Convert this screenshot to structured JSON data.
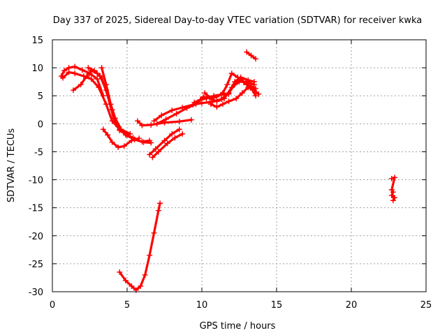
{
  "chart_data": {
    "type": "scatter",
    "title": "Day 337 of 2025, Sidereal Day-to-day VTEC variation (SDTVAR) for receiver kwka",
    "xlabel": "GPS time / hours",
    "ylabel": "SDTVAR / TECUs",
    "xlim": [
      0,
      25
    ],
    "ylim": [
      -30,
      15
    ],
    "xticks": [
      "0",
      "5",
      "10",
      "15",
      "20",
      "25"
    ],
    "yticks": [
      "-30",
      "-25",
      "-20",
      "-15",
      "-10",
      "-5",
      "0",
      "5",
      "10",
      "15"
    ],
    "grid": true,
    "color": "#ff0000",
    "series": [
      {
        "values": [
          [
            0.6,
            8.5
          ],
          [
            0.8,
            9.5
          ],
          [
            1.1,
            10.0
          ],
          [
            1.5,
            10.2
          ],
          [
            2.0,
            9.6
          ],
          [
            2.5,
            9.0
          ],
          [
            3.0,
            8.0
          ],
          [
            3.4,
            5.0
          ]
        ]
      },
      {
        "values": [
          [
            0.7,
            8.2
          ],
          [
            1.1,
            9.2
          ],
          [
            1.5,
            9.0
          ],
          [
            2.1,
            8.5
          ],
          [
            2.6,
            8.0
          ],
          [
            3.1,
            6.5
          ],
          [
            3.6,
            3.5
          ],
          [
            4.0,
            0.5
          ],
          [
            4.5,
            -1.0
          ],
          [
            5.0,
            -2.0
          ],
          [
            5.5,
            -2.8
          ],
          [
            6.0,
            -3.2
          ],
          [
            6.5,
            -3.0
          ]
        ]
      },
      {
        "values": [
          [
            1.4,
            6.0
          ],
          [
            1.9,
            7.0
          ],
          [
            2.3,
            8.5
          ],
          [
            2.6,
            9.5
          ],
          [
            3.0,
            9.0
          ],
          [
            3.3,
            8.2
          ],
          [
            3.7,
            5.0
          ],
          [
            4.1,
            1.0
          ],
          [
            4.5,
            -1.2
          ],
          [
            5.0,
            -2.0
          ],
          [
            5.4,
            -2.5
          ]
        ]
      },
      {
        "values": [
          [
            2.4,
            10.0
          ],
          [
            2.8,
            9.5
          ],
          [
            3.2,
            8.5
          ],
          [
            3.6,
            6.0
          ],
          [
            4.0,
            2.5
          ],
          [
            4.4,
            -0.5
          ],
          [
            4.9,
            -2.0
          ],
          [
            5.5,
            -2.8
          ],
          [
            6.1,
            -3.3
          ],
          [
            6.6,
            -3.4
          ]
        ]
      },
      {
        "values": [
          [
            3.3,
            10.0
          ],
          [
            3.6,
            7.0
          ],
          [
            3.9,
            3.5
          ],
          [
            4.2,
            1.0
          ],
          [
            4.6,
            -1.0
          ],
          [
            5.2,
            -1.8
          ]
        ]
      },
      {
        "values": [
          [
            3.4,
            -1.0
          ],
          [
            3.7,
            -2.0
          ],
          [
            4.0,
            -3.3
          ],
          [
            4.4,
            -4.2
          ],
          [
            4.8,
            -4.0
          ],
          [
            5.3,
            -3.0
          ],
          [
            5.8,
            -2.6
          ]
        ]
      },
      {
        "values": [
          [
            5.7,
            0.5
          ],
          [
            6.0,
            -0.3
          ],
          [
            6.6,
            -0.2
          ],
          [
            7.5,
            0.2
          ],
          [
            8.5,
            0.4
          ],
          [
            9.3,
            0.7
          ]
        ]
      },
      {
        "values": [
          [
            6.7,
            -6.0
          ],
          [
            7.1,
            -5.0
          ],
          [
            7.7,
            -3.5
          ],
          [
            8.2,
            -2.5
          ],
          [
            8.7,
            -1.8
          ]
        ]
      },
      {
        "values": [
          [
            6.5,
            -5.5
          ],
          [
            6.9,
            -4.5
          ],
          [
            7.5,
            -3.0
          ],
          [
            8.0,
            -1.8
          ],
          [
            8.5,
            -1.0
          ]
        ]
      },
      {
        "values": [
          [
            6.8,
            0.5
          ],
          [
            7.3,
            1.5
          ],
          [
            8.0,
            2.4
          ],
          [
            8.7,
            2.9
          ],
          [
            9.4,
            3.4
          ],
          [
            10.0,
            3.7
          ],
          [
            10.7,
            3.9
          ],
          [
            11.3,
            4.4
          ],
          [
            11.8,
            5.5
          ],
          [
            12.2,
            7.0
          ],
          [
            12.6,
            8.0
          ],
          [
            13.0,
            7.0
          ],
          [
            13.4,
            6.0
          ],
          [
            13.6,
            5.0
          ]
        ]
      },
      {
        "values": [
          [
            7.0,
            0.0
          ],
          [
            7.6,
            0.8
          ],
          [
            8.3,
            1.8
          ],
          [
            9.0,
            2.8
          ],
          [
            9.6,
            3.5
          ],
          [
            10.1,
            4.8
          ],
          [
            10.5,
            4.6
          ],
          [
            11.0,
            4.0
          ],
          [
            11.5,
            4.5
          ],
          [
            12.0,
            6.5
          ],
          [
            12.5,
            7.5
          ],
          [
            13.0,
            7.5
          ],
          [
            13.5,
            7.0
          ]
        ]
      },
      {
        "values": [
          [
            9.5,
            3.8
          ],
          [
            9.9,
            4.3
          ],
          [
            10.3,
            4.5
          ],
          [
            10.8,
            5.0
          ],
          [
            11.3,
            5.2
          ],
          [
            11.8,
            5.3
          ],
          [
            12.2,
            7.5
          ],
          [
            12.6,
            8.3
          ],
          [
            13.1,
            7.8
          ],
          [
            13.5,
            7.5
          ]
        ]
      },
      {
        "values": [
          [
            10.2,
            5.5
          ],
          [
            10.6,
            4.5
          ],
          [
            11.0,
            4.8
          ],
          [
            11.4,
            5.5
          ],
          [
            11.7,
            7.0
          ],
          [
            12.0,
            9.0
          ],
          [
            12.4,
            8.3
          ],
          [
            12.8,
            7.4
          ],
          [
            13.3,
            6.7
          ],
          [
            13.6,
            6.3
          ]
        ]
      },
      {
        "values": [
          [
            10.6,
            3.5
          ],
          [
            11.0,
            3.0
          ],
          [
            11.4,
            3.5
          ],
          [
            11.8,
            4.0
          ],
          [
            12.3,
            4.5
          ],
          [
            12.7,
            5.5
          ],
          [
            13.1,
            6.5
          ],
          [
            13.5,
            6.0
          ],
          [
            13.8,
            5.3
          ]
        ]
      },
      {
        "values": [
          [
            13.0,
            12.8
          ],
          [
            13.3,
            12.2
          ],
          [
            13.6,
            11.6
          ]
        ]
      },
      {
        "values": [
          [
            4.5,
            -26.5
          ],
          [
            4.9,
            -28.0
          ],
          [
            5.3,
            -29.0
          ],
          [
            5.6,
            -29.7
          ],
          [
            5.9,
            -29.0
          ],
          [
            6.2,
            -27.0
          ],
          [
            6.5,
            -23.5
          ],
          [
            6.8,
            -19.5
          ],
          [
            7.1,
            -15.5
          ],
          [
            7.2,
            -14.2
          ]
        ]
      },
      {
        "values": [
          [
            22.7,
            -9.8
          ],
          [
            22.9,
            -9.6
          ],
          [
            22.7,
            -11.8
          ],
          [
            22.8,
            -12.2
          ],
          [
            22.7,
            -12.8
          ],
          [
            22.9,
            -13.2
          ],
          [
            22.8,
            -13.7
          ]
        ]
      }
    ]
  }
}
